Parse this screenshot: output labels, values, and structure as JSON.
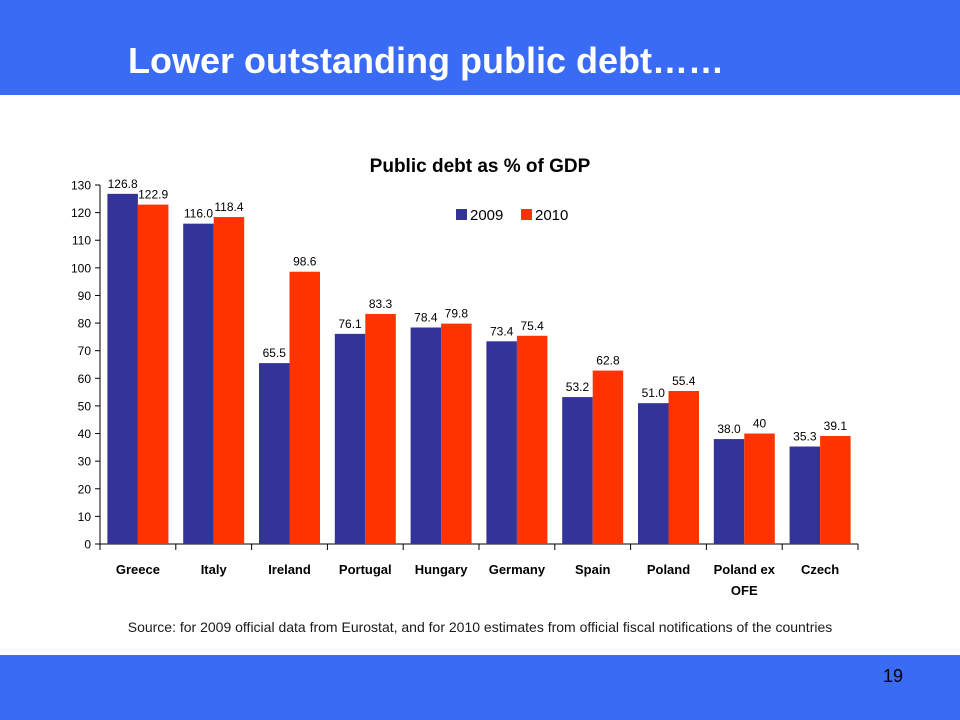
{
  "slide": {
    "title": "Lower outstanding public debt……",
    "source": "Source: for 2009 official data from Eurostat, and for 2010 estimates from official fiscal notifications of the countries",
    "page_number": "19"
  },
  "chart_data": {
    "type": "bar",
    "title": "Public debt as % of GDP",
    "xlabel": "",
    "ylabel": "",
    "categories": [
      "Greece",
      "Italy",
      "Ireland",
      "Portugal",
      "Hungary",
      "Germany",
      "Spain",
      "Poland",
      "Poland ex OFE",
      "Czech"
    ],
    "series": [
      {
        "name": "2009",
        "color": "#333399",
        "values": [
          126.8,
          116.0,
          65.5,
          76.1,
          78.4,
          73.4,
          53.2,
          51.0,
          38.0,
          35.3
        ],
        "labels": [
          "126.8",
          "116.0",
          "65.5",
          "76.1",
          "78.4",
          "73.4",
          "53.2",
          "51.0",
          "38.0",
          "35.3"
        ]
      },
      {
        "name": "2010",
        "color": "#ff3300",
        "values": [
          122.9,
          118.4,
          98.6,
          83.3,
          79.8,
          75.4,
          62.8,
          55.4,
          40,
          39.1
        ],
        "labels": [
          "122.9",
          "118.4",
          "98.6",
          "83.3",
          "79.8",
          "75.4",
          "62.8",
          "55.4",
          "40",
          "39.1"
        ]
      }
    ],
    "ylim": [
      0,
      130
    ],
    "yticks": [
      0,
      10,
      20,
      30,
      40,
      50,
      60,
      70,
      80,
      90,
      100,
      110,
      120,
      130
    ],
    "grid": false,
    "legend": "top"
  }
}
